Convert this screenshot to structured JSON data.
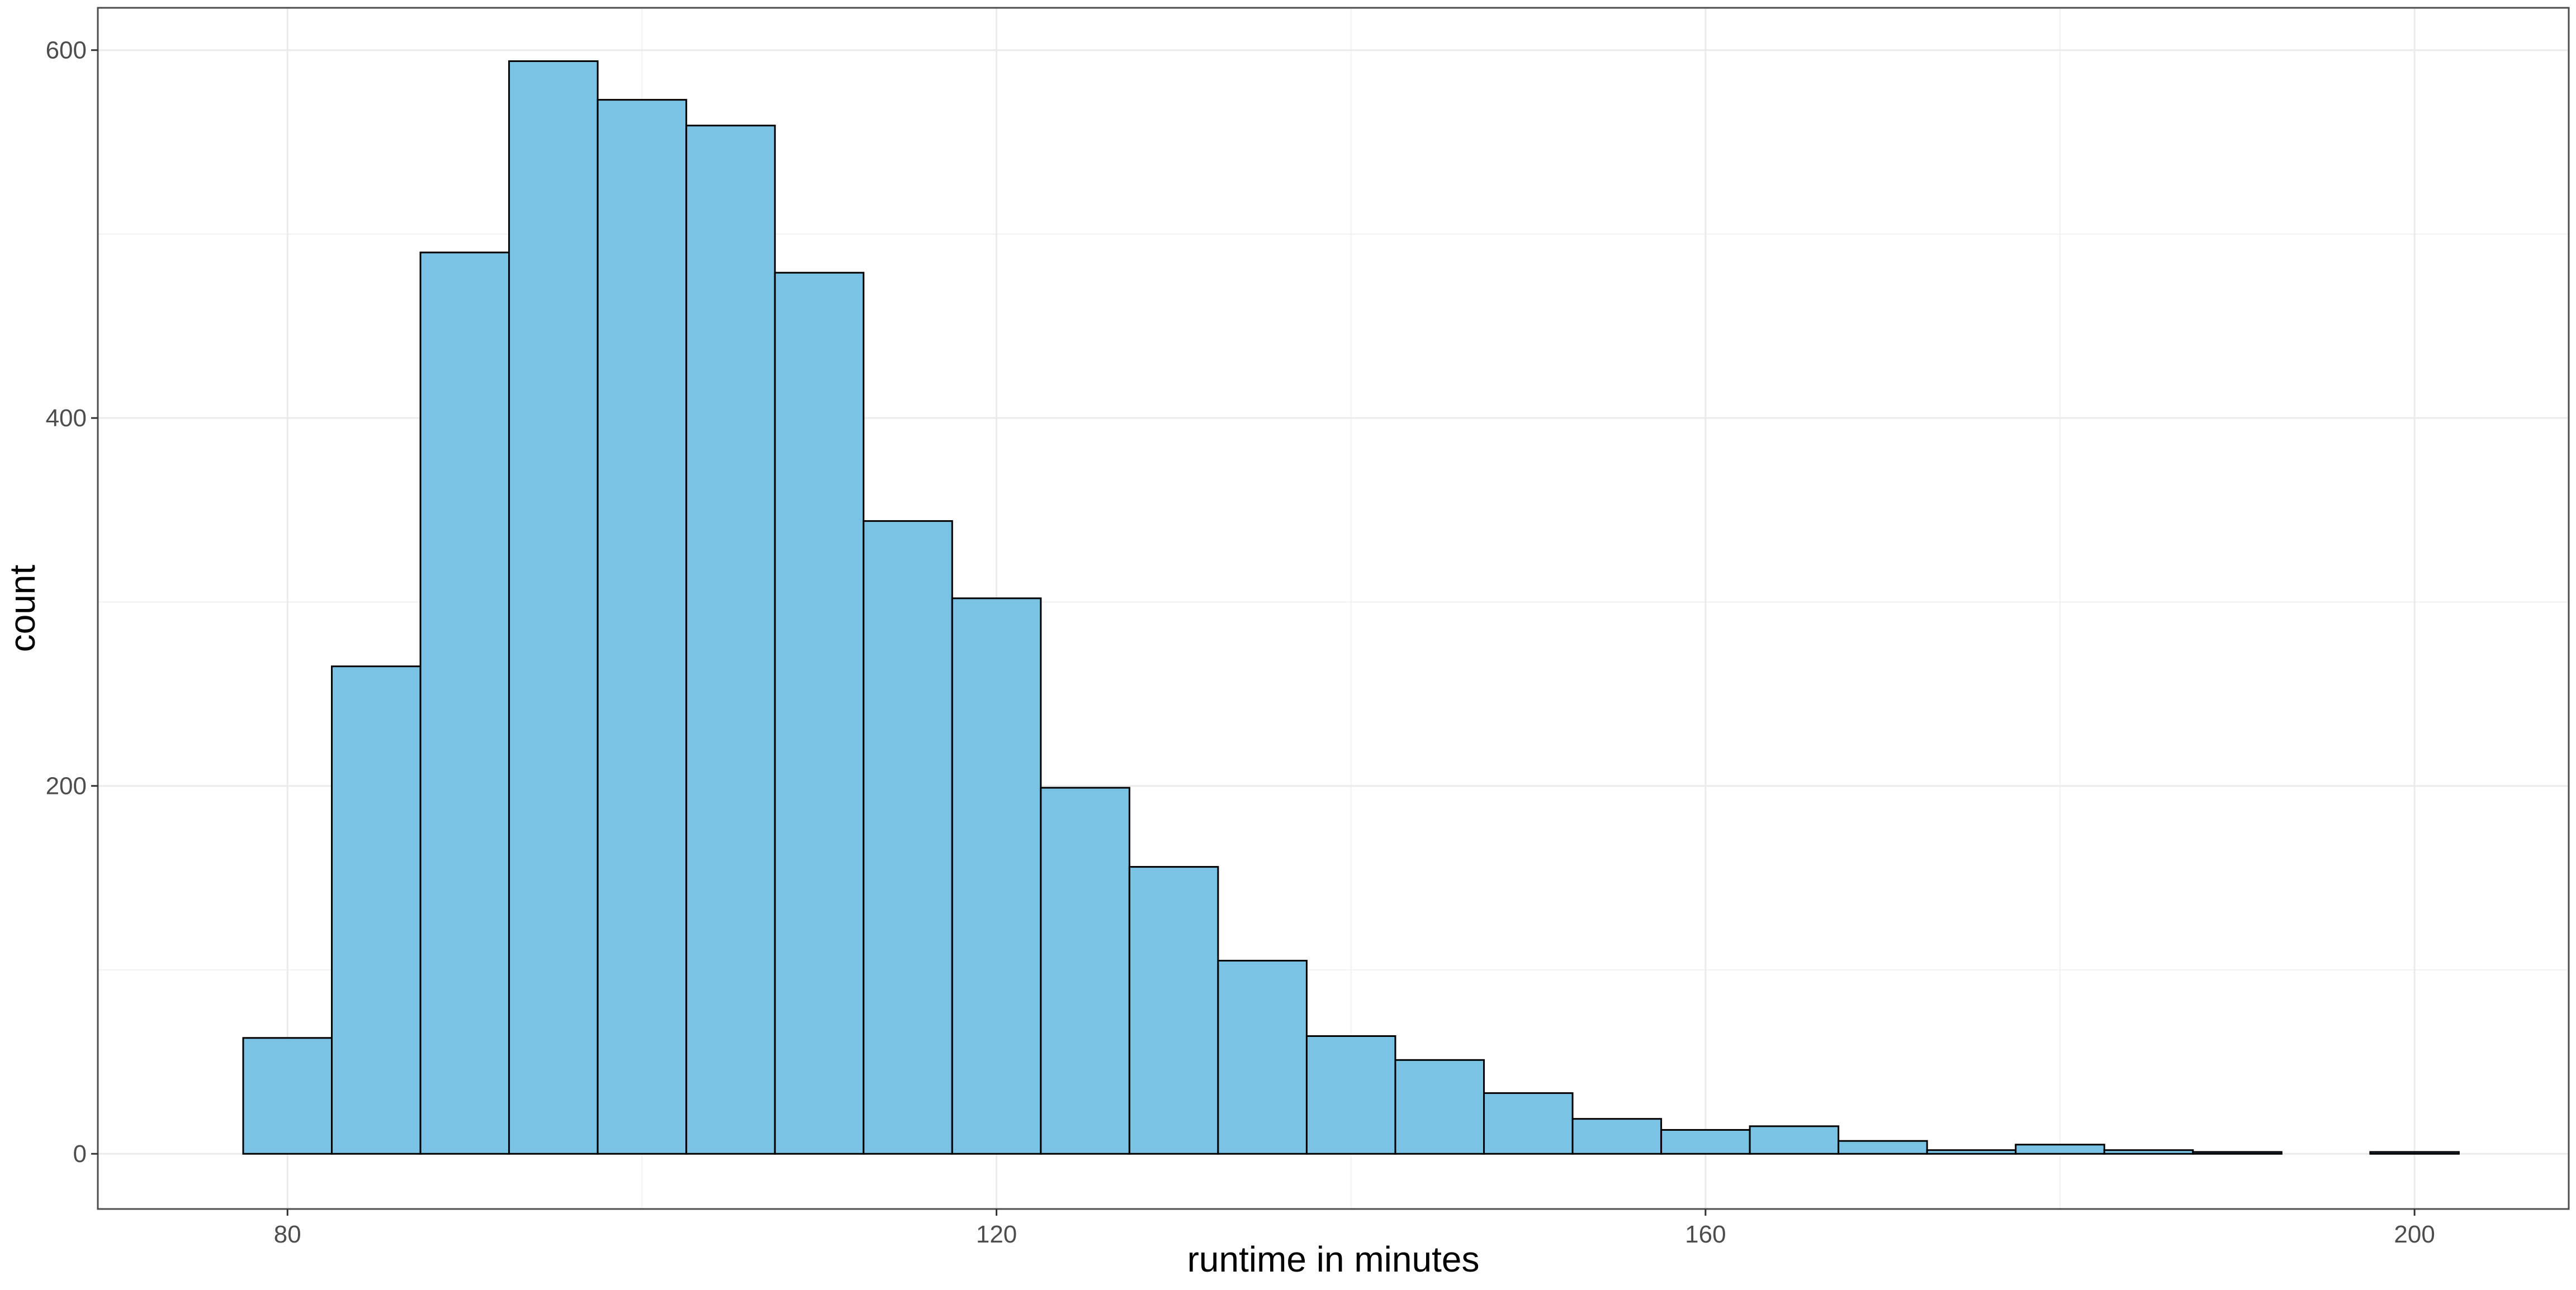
{
  "chart_data": {
    "type": "bar",
    "subtype": "histogram",
    "title": "",
    "xlabel": "runtime in minutes",
    "ylabel": "count",
    "xlim": [
      69.3,
      208.7
    ],
    "ylim": [
      -30,
      623
    ],
    "x_ticks": [
      80,
      120,
      160,
      200
    ],
    "x_tick_labels": [
      "80",
      "120",
      "160",
      "200"
    ],
    "x_minor_ticks": [
      100,
      140,
      180
    ],
    "y_ticks": [
      0,
      200,
      400,
      600
    ],
    "y_tick_labels": [
      "0",
      "200",
      "400",
      "600"
    ],
    "y_minor_ticks": [
      100,
      300,
      500
    ],
    "grid": true,
    "bar_fill": "#7AC3E5",
    "bar_stroke": "#000000",
    "bins": [
      {
        "x0": 77.5,
        "x1": 82.5,
        "count": 63
      },
      {
        "x0": 82.5,
        "x1": 87.5,
        "count": 265
      },
      {
        "x0": 87.5,
        "x1": 92.5,
        "count": 490
      },
      {
        "x0": 92.5,
        "x1": 97.5,
        "count": 594
      },
      {
        "x0": 97.5,
        "x1": 102.5,
        "count": 573
      },
      {
        "x0": 102.5,
        "x1": 107.5,
        "count": 559
      },
      {
        "x0": 107.5,
        "x1": 112.5,
        "count": 479
      },
      {
        "x0": 112.5,
        "x1": 117.5,
        "count": 344
      },
      {
        "x0": 117.5,
        "x1": 122.5,
        "count": 302
      },
      {
        "x0": 122.5,
        "x1": 127.5,
        "count": 199
      },
      {
        "x0": 127.5,
        "x1": 132.5,
        "count": 156
      },
      {
        "x0": 132.5,
        "x1": 137.5,
        "count": 105
      },
      {
        "x0": 137.5,
        "x1": 142.5,
        "count": 64
      },
      {
        "x0": 142.5,
        "x1": 147.5,
        "count": 51
      },
      {
        "x0": 147.5,
        "x1": 152.5,
        "count": 33
      },
      {
        "x0": 152.5,
        "x1": 157.5,
        "count": 19
      },
      {
        "x0": 157.5,
        "x1": 162.5,
        "count": 13
      },
      {
        "x0": 162.5,
        "x1": 167.5,
        "count": 15
      },
      {
        "x0": 167.5,
        "x1": 172.5,
        "count": 7
      },
      {
        "x0": 172.5,
        "x1": 177.5,
        "count": 2
      },
      {
        "x0": 177.5,
        "x1": 182.5,
        "count": 5
      },
      {
        "x0": 182.5,
        "x1": 187.5,
        "count": 2
      },
      {
        "x0": 187.5,
        "x1": 192.5,
        "count": 1
      },
      {
        "x0": 192.5,
        "x1": 197.5,
        "count": 0
      },
      {
        "x0": 197.5,
        "x1": 202.5,
        "count": 1
      }
    ]
  }
}
